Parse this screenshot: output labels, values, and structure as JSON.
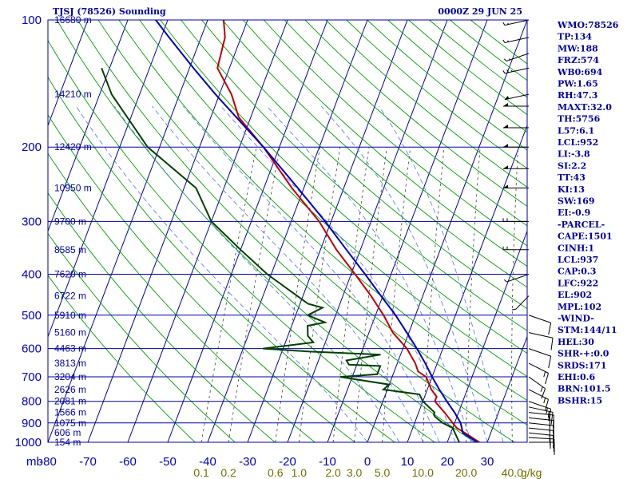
{
  "header": {
    "title": "TJSJ (78526) Sounding",
    "time": "0000Z 29 JUN 25"
  },
  "indices": [
    "WMO:78526",
    "TP:134",
    "MW:188",
    "FRZ:574",
    "WB0:694",
    "PW:1.65",
    "RH:47.3",
    "MAXT:32.0",
    "TH:5756",
    "L57:6.1",
    "LCL:952",
    "LI:-3.8",
    "SI:2.2",
    "TT:43",
    "KI:13",
    "SW:169",
    "EI:-0.9",
    "-PARCEL-",
    "CAPE:1501",
    "CINH:1",
    "LCL:937",
    "CAP:0.3",
    "LFC:922",
    "EL:902",
    "MPL:102",
    "-WIND-",
    "STM:144/11",
    "HEL:30",
    "SHR-+:0.0",
    "SRDS:171",
    "EHI:0.6",
    "BRN:101.5",
    "BSHR:15"
  ],
  "colors": {
    "isobar": "#0000a0",
    "isotherm": "#0000a0",
    "dry_adiabat": "#00a000",
    "moist_adiabat": "#6080ff",
    "mixing_ratio": "#404040",
    "temperature": "#c00000",
    "dewpoint": "#004000",
    "parcel": "#0000c0",
    "wind_barb": "#000000"
  },
  "chart_data": {
    "type": "line",
    "title": "TJSJ (78526) Sounding",
    "x_axis": {
      "label": "",
      "unit_label": "mb",
      "range": [
        -80,
        40
      ],
      "ticks": [
        -80,
        -70,
        -60,
        -50,
        -40,
        -30,
        -20,
        -10,
        0,
        10,
        20,
        30
      ],
      "tick_labels": [
        "-80",
        "-70",
        "-60",
        "-50",
        "-40",
        "-30",
        "-20",
        "-10",
        "0",
        "10",
        "20",
        "30"
      ]
    },
    "y_axis": {
      "label": "",
      "scale": "log",
      "range": [
        1000,
        100
      ],
      "ticks": [
        100,
        200,
        300,
        400,
        500,
        600,
        700,
        800,
        900,
        1000
      ],
      "tick_labels": [
        "100",
        "200",
        "300",
        "400",
        "500",
        "600",
        "700",
        "800",
        "900",
        "1000"
      ]
    },
    "heights": [
      {
        "p": 100,
        "label": "16680 m"
      },
      {
        "p": 150,
        "label": "14210 m"
      },
      {
        "p": 200,
        "label": "12420 m"
      },
      {
        "p": 250,
        "label": "10950 m"
      },
      {
        "p": 300,
        "label": "9700 m"
      },
      {
        "p": 350,
        "label": "8585 m"
      },
      {
        "p": 400,
        "label": "7620 m"
      },
      {
        "p": 450,
        "label": "6722 m"
      },
      {
        "p": 500,
        "label": "5910 m"
      },
      {
        "p": 550,
        "label": "5160 m"
      },
      {
        "p": 600,
        "label": "4463 m"
      },
      {
        "p": 650,
        "label": "3813 m"
      },
      {
        "p": 700,
        "label": "3204 m"
      },
      {
        "p": 750,
        "label": "2626 m"
      },
      {
        "p": 800,
        "label": "2081 m"
      },
      {
        "p": 850,
        "label": "1566 m"
      },
      {
        "p": 900,
        "label": "1075 m"
      },
      {
        "p": 950,
        "label": "606 m"
      },
      {
        "p": 1000,
        "label": "154 m"
      }
    ],
    "mixing_ratio_labels": [
      {
        "w": 0.1,
        "label": "0.1"
      },
      {
        "w": 0.2,
        "label": "0.2"
      },
      {
        "w": 0.6,
        "label": "0.6"
      },
      {
        "w": 1.0,
        "label": "1.0"
      },
      {
        "w": 2.0,
        "label": "2.0"
      },
      {
        "w": 3.0,
        "label": "3.0"
      },
      {
        "w": 5.0,
        "label": "5.0"
      },
      {
        "w": 10.0,
        "label": "10.0"
      },
      {
        "w": 20.0,
        "label": "20.0"
      },
      {
        "w": 40.0,
        "label": "40.0"
      }
    ],
    "mixing_ratio_unit": "g/kg",
    "series": [
      {
        "key": "temperature",
        "points": [
          {
            "p": 1000,
            "t": 28
          },
          {
            "p": 950,
            "t": 23.5
          },
          {
            "p": 925,
            "t": 21
          },
          {
            "p": 900,
            "t": 19.5
          },
          {
            "p": 850,
            "t": 16.5
          },
          {
            "p": 800,
            "t": 13
          },
          {
            "p": 780,
            "t": 13
          },
          {
            "p": 750,
            "t": 11
          },
          {
            "p": 700,
            "t": 8.5
          },
          {
            "p": 680,
            "t": 6
          },
          {
            "p": 650,
            "t": 4.5
          },
          {
            "p": 600,
            "t": 1
          },
          {
            "p": 550,
            "t": -4
          },
          {
            "p": 500,
            "t": -8
          },
          {
            "p": 450,
            "t": -13
          },
          {
            "p": 400,
            "t": -19
          },
          {
            "p": 350,
            "t": -26
          },
          {
            "p": 300,
            "t": -33
          },
          {
            "p": 250,
            "t": -43
          },
          {
            "p": 200,
            "t": -54
          },
          {
            "p": 170,
            "t": -63
          },
          {
            "p": 150,
            "t": -67
          },
          {
            "p": 130,
            "t": -73
          },
          {
            "p": 110,
            "t": -74
          },
          {
            "p": 100,
            "t": -76
          }
        ]
      },
      {
        "key": "dewpoint",
        "points": [
          {
            "p": 1000,
            "t": 23
          },
          {
            "p": 950,
            "t": 21
          },
          {
            "p": 925,
            "t": 20
          },
          {
            "p": 900,
            "t": 17
          },
          {
            "p": 870,
            "t": 14.5
          },
          {
            "p": 860,
            "t": 14
          },
          {
            "p": 850,
            "t": 14
          },
          {
            "p": 800,
            "t": 10
          },
          {
            "p": 770,
            "t": 8.5
          },
          {
            "p": 750,
            "t": -1
          },
          {
            "p": 730,
            "t": 0
          },
          {
            "p": 700,
            "t": -13
          },
          {
            "p": 690,
            "t": -4
          },
          {
            "p": 660,
            "t": -4
          },
          {
            "p": 655,
            "t": -12
          },
          {
            "p": 640,
            "t": -13
          },
          {
            "p": 620,
            "t": -5
          },
          {
            "p": 610,
            "t": -23
          },
          {
            "p": 600,
            "t": -35
          },
          {
            "p": 580,
            "t": -23
          },
          {
            "p": 560,
            "t": -25
          },
          {
            "p": 530,
            "t": -26
          },
          {
            "p": 520,
            "t": -22
          },
          {
            "p": 500,
            "t": -27
          },
          {
            "p": 480,
            "t": -24
          },
          {
            "p": 470,
            "t": -28
          },
          {
            "p": 400,
            "t": -41
          },
          {
            "p": 350,
            "t": -50
          },
          {
            "p": 300,
            "t": -60
          },
          {
            "p": 250,
            "t": -67
          },
          {
            "p": 200,
            "t": -83
          },
          {
            "p": 150,
            "t": -97
          },
          {
            "p": 130,
            "t": -102
          }
        ]
      },
      {
        "key": "parcel",
        "points": [
          {
            "p": 1000,
            "t": 27.5
          },
          {
            "p": 950,
            "t": 23
          },
          {
            "p": 900,
            "t": 21.5
          },
          {
            "p": 850,
            "t": 19
          },
          {
            "p": 800,
            "t": 16
          },
          {
            "p": 750,
            "t": 13
          },
          {
            "p": 700,
            "t": 10
          },
          {
            "p": 650,
            "t": 7
          },
          {
            "p": 600,
            "t": 3.5
          },
          {
            "p": 550,
            "t": -0.5
          },
          {
            "p": 500,
            "t": -5
          },
          {
            "p": 450,
            "t": -10.5
          },
          {
            "p": 400,
            "t": -16.5
          },
          {
            "p": 350,
            "t": -23.5
          },
          {
            "p": 300,
            "t": -31.5
          },
          {
            "p": 250,
            "t": -41.5
          },
          {
            "p": 200,
            "t": -54
          },
          {
            "p": 150,
            "t": -71
          },
          {
            "p": 130,
            "t": -79
          },
          {
            "p": 110,
            "t": -88
          },
          {
            "p": 100,
            "t": -93
          }
        ]
      }
    ],
    "wind_barbs": [
      {
        "p": 1000,
        "dir": 90,
        "spd": 15
      },
      {
        "p": 975,
        "dir": 95,
        "spd": 15
      },
      {
        "p": 950,
        "dir": 100,
        "spd": 15
      },
      {
        "p": 925,
        "dir": 100,
        "spd": 15
      },
      {
        "p": 900,
        "dir": 100,
        "spd": 15
      },
      {
        "p": 875,
        "dir": 100,
        "spd": 15
      },
      {
        "p": 850,
        "dir": 100,
        "spd": 15
      },
      {
        "p": 825,
        "dir": 110,
        "spd": 15
      },
      {
        "p": 800,
        "dir": 120,
        "spd": 15
      },
      {
        "p": 750,
        "dir": 130,
        "spd": 15
      },
      {
        "p": 700,
        "dir": 140,
        "spd": 15
      },
      {
        "p": 650,
        "dir": 130,
        "spd": 15
      },
      {
        "p": 600,
        "dir": 120,
        "spd": 10
      },
      {
        "p": 550,
        "dir": 110,
        "spd": 10
      },
      {
        "p": 500,
        "dir": 120,
        "spd": 10
      },
      {
        "p": 450,
        "dir": 210,
        "spd": 10
      },
      {
        "p": 400,
        "dir": 240,
        "spd": 10
      },
      {
        "p": 350,
        "dir": 270,
        "spd": 20
      },
      {
        "p": 300,
        "dir": 270,
        "spd": 20
      },
      {
        "p": 250,
        "dir": 270,
        "spd": 50
      },
      {
        "p": 225,
        "dir": 270,
        "spd": 50
      },
      {
        "p": 200,
        "dir": 270,
        "spd": 50
      },
      {
        "p": 180,
        "dir": 270,
        "spd": 50
      },
      {
        "p": 160,
        "dir": 270,
        "spd": 50
      },
      {
        "p": 150,
        "dir": 250,
        "spd": 50
      },
      {
        "p": 130,
        "dir": 250,
        "spd": 25
      },
      {
        "p": 120,
        "dir": 240,
        "spd": 15
      },
      {
        "p": 110,
        "dir": 250,
        "spd": 15
      },
      {
        "p": 100,
        "dir": 250,
        "spd": 15
      }
    ]
  }
}
